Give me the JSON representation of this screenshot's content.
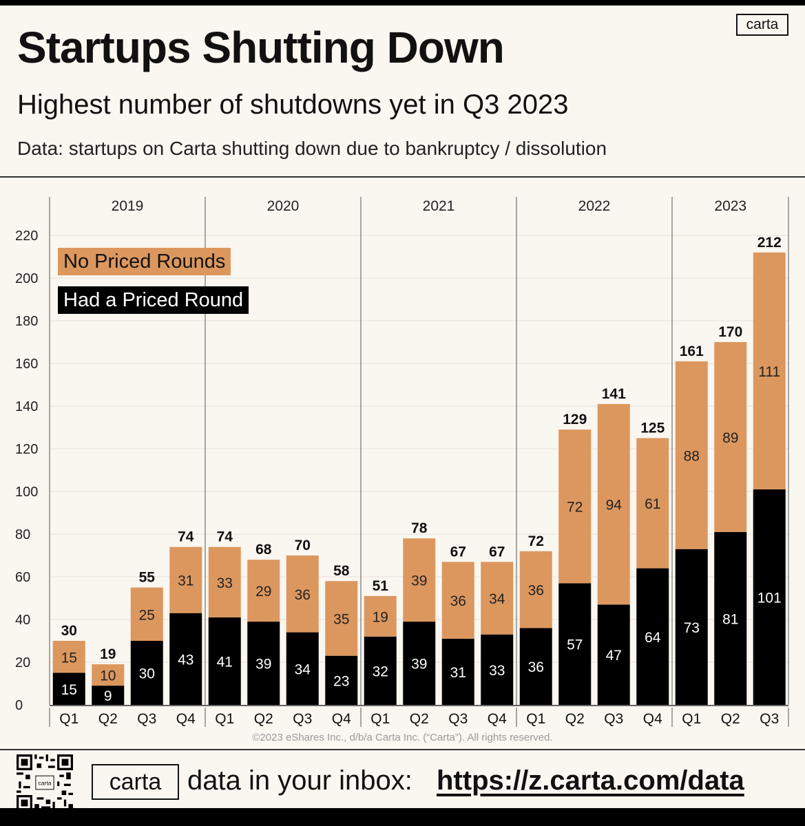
{
  "header": {
    "title": "Startups Shutting Down",
    "subtitle": "Highest number of shutdowns yet in Q3 2023",
    "source": "Data: startups on Carta shutting down due to bankruptcy / dissolution",
    "logo": "carta"
  },
  "footer": {
    "copyright": "©2023 eShares Inc., d/b/a Carta Inc. (“Carta”). All rights reserved.",
    "logo": "carta",
    "cta_text": "data in your inbox:",
    "url": "https://z.carta.com/data",
    "qr_logo": "carta"
  },
  "colors": {
    "no_priced": "#dc975e",
    "priced": "#000000",
    "background": "#faf6f0"
  },
  "chart_data": {
    "type": "bar",
    "stacked": true,
    "years": [
      "2019",
      "2020",
      "2021",
      "2022",
      "2023"
    ],
    "categories": [
      "Q1",
      "Q2",
      "Q3",
      "Q4",
      "Q1",
      "Q2",
      "Q3",
      "Q4",
      "Q1",
      "Q2",
      "Q3",
      "Q4",
      "Q1",
      "Q2",
      "Q3",
      "Q4",
      "Q1",
      "Q2",
      "Q3"
    ],
    "year_of_category": [
      0,
      0,
      0,
      0,
      1,
      1,
      1,
      1,
      2,
      2,
      2,
      2,
      3,
      3,
      3,
      3,
      4,
      4,
      4
    ],
    "series": [
      {
        "name": "Had a Priced Round",
        "color": "#000000",
        "values": [
          15,
          9,
          30,
          43,
          41,
          39,
          34,
          23,
          32,
          39,
          31,
          33,
          36,
          57,
          47,
          64,
          73,
          81,
          101
        ]
      },
      {
        "name": "No Priced Rounds",
        "color": "#dc975e",
        "values": [
          15,
          10,
          25,
          31,
          33,
          29,
          36,
          35,
          19,
          39,
          36,
          34,
          36,
          72,
          94,
          61,
          88,
          89,
          111
        ]
      }
    ],
    "totals": [
      30,
      19,
      55,
      74,
      74,
      68,
      70,
      58,
      51,
      78,
      67,
      67,
      72,
      129,
      141,
      125,
      161,
      170,
      212
    ],
    "ylim": [
      0,
      220
    ],
    "yticks": [
      0,
      20,
      40,
      60,
      80,
      100,
      120,
      140,
      160,
      180,
      200,
      220
    ],
    "grid": true,
    "legend": [
      "No Priced Rounds",
      "Had a Priced Round"
    ],
    "legend_position": "top-left"
  }
}
